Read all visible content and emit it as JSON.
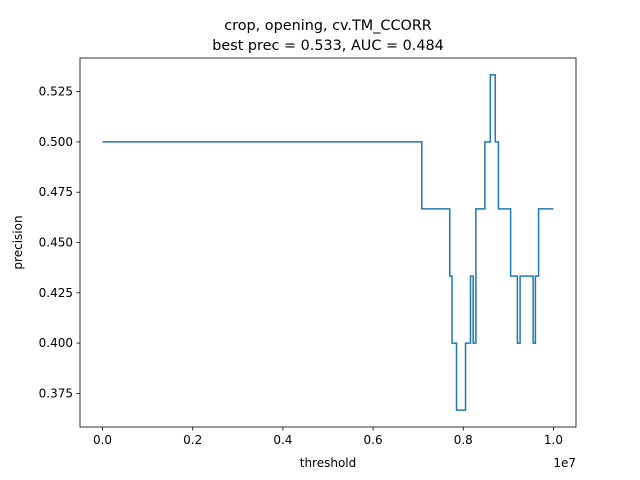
{
  "chart_data": {
    "type": "line",
    "title": "crop, opening, cv.TM_CCORR",
    "subtitle": "best prec = 0.533, AUC = 0.484",
    "xlabel": "threshold",
    "ylabel": "precision",
    "x_offset_label": "1e7",
    "xlim": [
      -500000,
      10500000
    ],
    "ylim": [
      0.3583,
      0.5417
    ],
    "x_ticks": [
      0,
      2000000,
      4000000,
      6000000,
      8000000,
      10000000
    ],
    "x_tick_labels": [
      "0.0",
      "0.2",
      "0.4",
      "0.6",
      "0.8",
      "1.0"
    ],
    "y_ticks": [
      0.375,
      0.4,
      0.425,
      0.45,
      0.475,
      0.5,
      0.525
    ],
    "y_tick_labels": [
      "0.375",
      "0.400",
      "0.425",
      "0.450",
      "0.475",
      "0.500",
      "0.525"
    ],
    "grid": false,
    "step": "post",
    "series": [
      {
        "color": "#1f77b4",
        "x": [
          0,
          7080000,
          7700000,
          7750000,
          7850000,
          8050000,
          8160000,
          8220000,
          8280000,
          8350000,
          8480000,
          8600000,
          8710000,
          8780000,
          9050000,
          9200000,
          9260000,
          9550000,
          9600000,
          9670000,
          10000000
        ],
        "y": [
          0.5,
          0.4667,
          0.4333,
          0.4,
          0.3667,
          0.4,
          0.4333,
          0.4,
          0.4667,
          0.4667,
          0.5,
          0.5333,
          0.5,
          0.4667,
          0.4333,
          0.4,
          0.4333,
          0.4,
          0.4333,
          0.4667,
          0.4667
        ]
      }
    ]
  }
}
